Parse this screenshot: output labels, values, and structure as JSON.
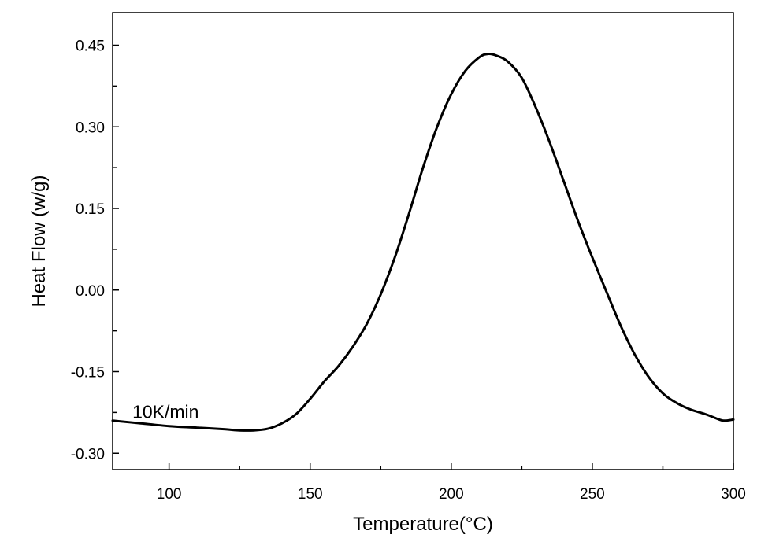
{
  "chart_data": {
    "type": "line",
    "title": "",
    "xlabel": "Temperature(°C)",
    "ylabel": "Heat Flow (w/g)",
    "xlim": [
      80,
      300
    ],
    "ylim": [
      -0.33,
      0.51
    ],
    "x_ticks": [
      100,
      150,
      200,
      250,
      300
    ],
    "x_tick_labels": [
      "100",
      "150",
      "200",
      "250",
      "300"
    ],
    "x_minor_ticks": [
      125,
      175,
      225,
      275
    ],
    "y_ticks": [
      -0.3,
      -0.15,
      0.0,
      0.15,
      0.3,
      0.45
    ],
    "y_tick_labels": [
      "-0.30",
      "-0.15",
      "0.00",
      "0.15",
      "0.30",
      "0.45"
    ],
    "y_minor_ticks": [
      -0.225,
      -0.075,
      0.075,
      0.225,
      0.375
    ],
    "grid": false,
    "annotations": [
      {
        "text": "10K/min",
        "x": 87,
        "y": -0.235
      }
    ],
    "series": [
      {
        "x": [
          80,
          90,
          100,
          110,
          120,
          125,
          130,
          135,
          140,
          145,
          150,
          155,
          160,
          165,
          170,
          175,
          180,
          185,
          190,
          195,
          200,
          205,
          210,
          213,
          216,
          220,
          225,
          230,
          235,
          240,
          245,
          250,
          255,
          260,
          265,
          270,
          275,
          280,
          285,
          290,
          295,
          297,
          300
        ],
        "y": [
          -0.24,
          -0.245,
          -0.25,
          -0.253,
          -0.256,
          -0.258,
          -0.258,
          -0.255,
          -0.245,
          -0.228,
          -0.2,
          -0.168,
          -0.14,
          -0.105,
          -0.063,
          -0.008,
          0.06,
          0.14,
          0.225,
          0.3,
          0.36,
          0.403,
          0.428,
          0.434,
          0.431,
          0.42,
          0.39,
          0.335,
          0.27,
          0.198,
          0.126,
          0.06,
          -0.003,
          -0.065,
          -0.118,
          -0.16,
          -0.19,
          -0.208,
          -0.22,
          -0.228,
          -0.238,
          -0.24,
          -0.238
        ]
      }
    ]
  }
}
